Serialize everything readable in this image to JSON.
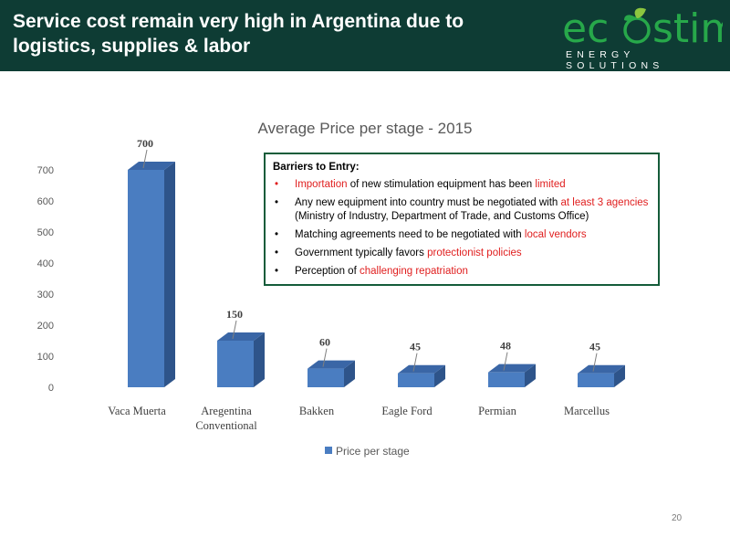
{
  "header": {
    "title": "Service cost remain very high in Argentina due to logistics, supplies & labor",
    "logo_text_left": "ec",
    "logo_text_right": "stim",
    "logo_subtitle": "ENERGY SOLUTIONS"
  },
  "colors": {
    "header_bg": "#0e3c34",
    "brand_green": "#27a84a",
    "bar_front": "#4a7dc1",
    "highlight": "#e01e1e",
    "callout_border": "#145c3a"
  },
  "chart_data": {
    "type": "bar",
    "title": "Average Price per stage - 2015",
    "categories": [
      "Vaca Muerta",
      "Aregentina Conventional",
      "Bakken",
      "Eagle Ford",
      "Permian",
      "Marcellus"
    ],
    "series": [
      {
        "name": "Price per stage",
        "values": [
          700,
          150,
          60,
          45,
          48,
          45
        ]
      }
    ],
    "ylim": [
      0,
      700
    ],
    "yticks": [
      0,
      100,
      200,
      300,
      400,
      500,
      600,
      700
    ],
    "grid": false,
    "legend": "bottom-center"
  },
  "callout": {
    "title": "Barriers to Entry:",
    "items": [
      {
        "bullet": "•",
        "parts": [
          {
            "text": "Importation",
            "hl": true
          },
          {
            "text": " of new stimulation equipment has been ",
            "hl": false
          },
          {
            "text": "limited",
            "hl": true
          }
        ]
      },
      {
        "bullet": "•",
        "parts": [
          {
            "text": "Any new equipment into country must be negotiated with ",
            "hl": false
          },
          {
            "text": "at least 3 agencies",
            "hl": true
          },
          {
            "text": " (Ministry of Industry, Department of Trade, and Customs Office)",
            "hl": false
          }
        ]
      },
      {
        "bullet": "•",
        "parts": [
          {
            "text": "Matching agreements need to be negotiated with ",
            "hl": false
          },
          {
            "text": "local vendors",
            "hl": true
          }
        ]
      },
      {
        "bullet": "•",
        "parts": [
          {
            "text": "Government typically favors ",
            "hl": false
          },
          {
            "text": "protectionist policies",
            "hl": true
          }
        ]
      },
      {
        "bullet": "•",
        "parts": [
          {
            "text": "Perception of ",
            "hl": false
          },
          {
            "text": "challenging repatriation",
            "hl": true
          }
        ]
      }
    ]
  },
  "footer": {
    "page_number": "20"
  }
}
